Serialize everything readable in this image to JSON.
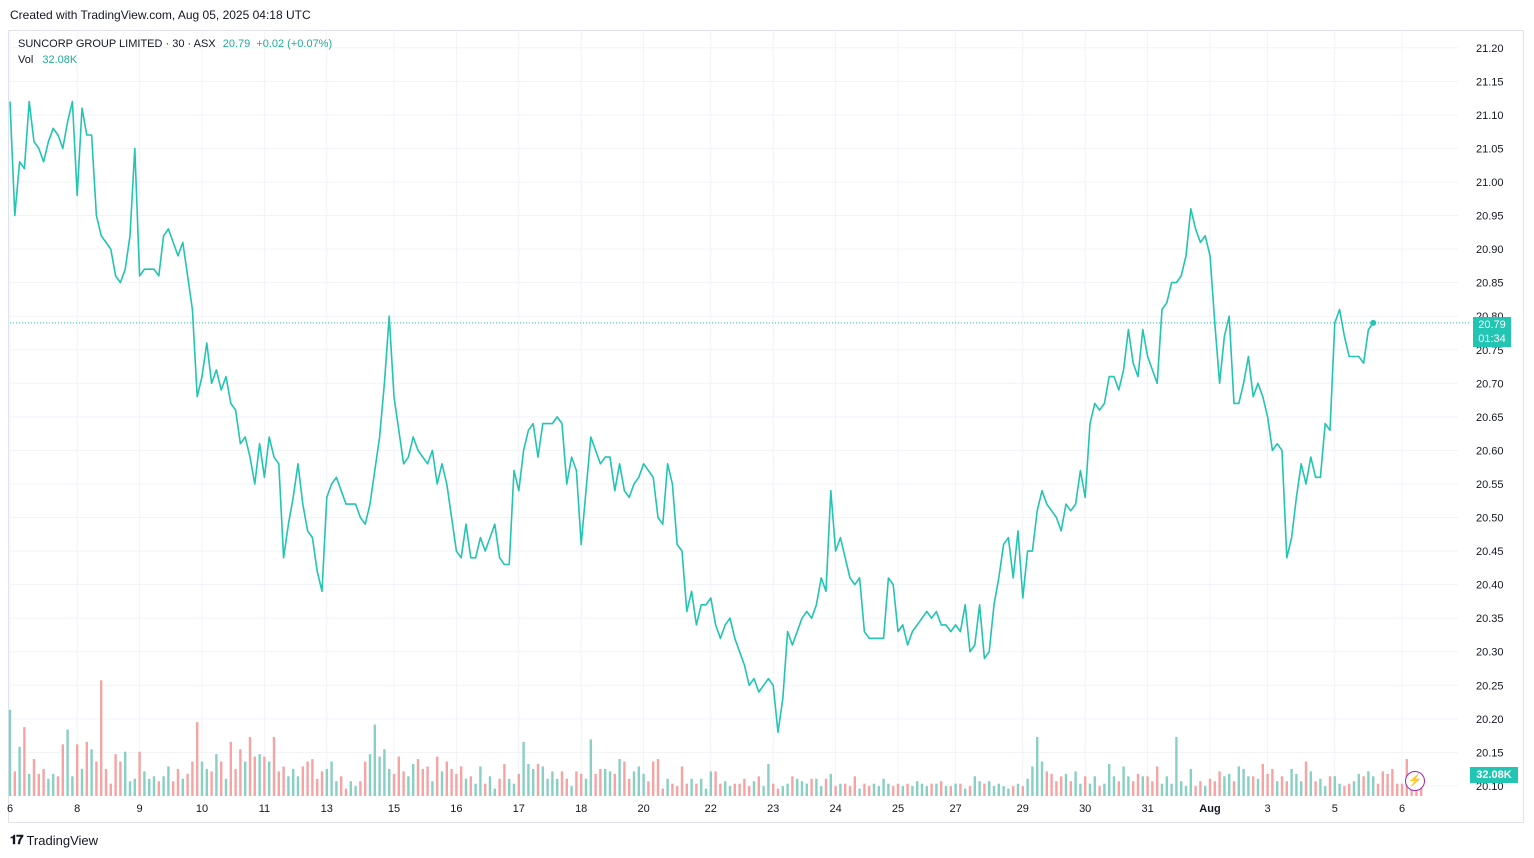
{
  "header": {
    "created_text": "Created with TradingView.com, Aug 05, 2025 04:18 UTC"
  },
  "legend": {
    "symbol": "SUNCORP GROUP LIMITED · 30 · ASX",
    "price": "20.79",
    "change": "+0.02 (+0.07%)",
    "vol_label": "Vol",
    "vol_value": "32.08K"
  },
  "badges": {
    "price": "20.79",
    "countdown": "01:34",
    "volume": "32.08K"
  },
  "footer": {
    "brand": "TradingView"
  },
  "colors": {
    "line": "#22c4b2",
    "vol_up": "#88cfc4",
    "vol_down": "#f5a3a3",
    "grid": "#f0f3fa"
  },
  "chart_data": {
    "type": "line",
    "ylim": [
      20.085,
      21.225
    ],
    "yticks": [
      "21.20",
      "21.15",
      "21.10",
      "21.05",
      "21.00",
      "20.95",
      "20.90",
      "20.85",
      "20.80",
      "20.75",
      "20.70",
      "20.65",
      "20.60",
      "20.55",
      "20.50",
      "20.45",
      "20.40",
      "20.35",
      "20.30",
      "20.25",
      "20.20",
      "20.15",
      "20.10"
    ],
    "xticks": [
      {
        "label": "6",
        "i": 0
      },
      {
        "label": "8",
        "i": 14
      },
      {
        "label": "9",
        "i": 27
      },
      {
        "label": "10",
        "i": 40
      },
      {
        "label": "11",
        "i": 53
      },
      {
        "label": "13",
        "i": 66
      },
      {
        "label": "15",
        "i": 80
      },
      {
        "label": "16",
        "i": 93
      },
      {
        "label": "17",
        "i": 106
      },
      {
        "label": "18",
        "i": 119
      },
      {
        "label": "20",
        "i": 132
      },
      {
        "label": "22",
        "i": 146
      },
      {
        "label": "23",
        "i": 159
      },
      {
        "label": "24",
        "i": 172
      },
      {
        "label": "25",
        "i": 185
      },
      {
        "label": "27",
        "i": 197
      },
      {
        "label": "29",
        "i": 211
      },
      {
        "label": "30",
        "i": 224
      },
      {
        "label": "31",
        "i": 237
      },
      {
        "label": "Aug",
        "i": 250
      },
      {
        "label": "3",
        "i": 262
      },
      {
        "label": "5",
        "i": 276
      },
      {
        "label": "6",
        "i": 290
      }
    ],
    "last_price": 20.79,
    "series": [
      {
        "values": [
          21.12,
          20.95,
          21.03,
          21.02,
          21.12,
          21.06,
          21.05,
          21.03,
          21.06,
          21.08,
          21.07,
          21.05,
          21.09,
          21.12,
          20.98,
          21.11,
          21.07,
          21.07,
          20.95,
          20.92,
          20.91,
          20.9,
          20.86,
          20.85,
          20.87,
          20.92,
          21.05,
          20.86,
          20.87,
          20.87,
          20.87,
          20.86,
          20.92,
          20.93,
          20.91,
          20.89,
          20.91,
          20.86,
          20.81,
          20.68,
          20.71,
          20.76,
          20.7,
          20.72,
          20.69,
          20.71,
          20.67,
          20.66,
          20.61,
          20.62,
          20.59,
          20.55,
          20.61,
          20.56,
          20.62,
          20.59,
          20.58,
          20.44,
          20.49,
          20.53,
          20.58,
          20.52,
          20.48,
          20.47,
          20.42,
          20.39,
          20.53,
          20.55,
          20.56,
          20.54,
          20.52,
          20.52,
          20.52,
          20.5,
          20.49,
          20.52,
          20.57,
          20.62,
          20.7,
          20.8,
          20.68,
          20.63,
          20.58,
          20.59,
          20.62,
          20.6,
          20.59,
          20.58,
          20.6,
          20.55,
          20.58,
          20.55,
          20.5,
          20.45,
          20.44,
          20.49,
          20.44,
          20.44,
          20.47,
          20.45,
          20.47,
          20.49,
          20.44,
          20.43,
          20.43,
          20.57,
          20.54,
          20.6,
          20.63,
          20.64,
          20.59,
          20.64,
          20.64,
          20.64,
          20.65,
          20.64,
          20.55,
          20.59,
          20.57,
          20.46,
          20.54,
          20.62,
          20.6,
          20.58,
          20.59,
          20.59,
          20.54,
          20.58,
          20.54,
          20.53,
          20.55,
          20.56,
          20.58,
          20.57,
          20.56,
          20.5,
          20.49,
          20.58,
          20.55,
          20.46,
          20.45,
          20.36,
          20.39,
          20.34,
          20.37,
          20.37,
          20.38,
          20.34,
          20.32,
          20.34,
          20.35,
          20.32,
          20.3,
          20.28,
          20.25,
          20.26,
          20.24,
          20.25,
          20.26,
          20.25,
          20.18,
          20.23,
          20.33,
          20.31,
          20.33,
          20.35,
          20.36,
          20.35,
          20.37,
          20.41,
          20.39,
          20.54,
          20.45,
          20.47,
          20.44,
          20.41,
          20.4,
          20.41,
          20.33,
          20.32,
          20.32,
          20.32,
          20.32,
          20.41,
          20.4,
          20.33,
          20.34,
          20.31,
          20.33,
          20.34,
          20.35,
          20.36,
          20.35,
          20.36,
          20.34,
          20.34,
          20.33,
          20.34,
          20.33,
          20.37,
          20.3,
          20.31,
          20.37,
          20.29,
          20.3,
          20.37,
          20.41,
          20.46,
          20.47,
          20.41,
          20.48,
          20.38,
          20.45,
          20.45,
          20.51,
          20.54,
          20.52,
          20.51,
          20.5,
          20.48,
          20.52,
          20.51,
          20.52,
          20.57,
          20.53,
          20.64,
          20.67,
          20.66,
          20.67,
          20.71,
          20.71,
          20.69,
          20.72,
          20.78,
          20.73,
          20.71,
          20.78,
          20.74,
          20.72,
          20.7,
          20.81,
          20.82,
          20.85,
          20.85,
          20.86,
          20.89,
          20.96,
          20.93,
          20.91,
          20.92,
          20.89,
          20.79,
          20.7,
          20.77,
          20.8,
          20.67,
          20.67,
          20.7,
          20.74,
          20.68,
          20.7,
          20.68,
          20.65,
          20.6,
          20.61,
          20.6,
          20.44,
          20.47,
          20.53,
          20.58,
          20.55,
          20.59,
          20.56,
          20.56,
          20.64,
          20.63,
          20.79,
          20.81,
          20.77,
          20.74,
          20.74,
          20.74,
          20.73,
          20.78,
          20.79
        ]
      },
      {
        "name": "Vol",
        "values": [
          35,
          10,
          20,
          28,
          9,
          15,
          9,
          11,
          7,
          9,
          8,
          21,
          27,
          8,
          21,
          11,
          22,
          19,
          14,
          47,
          11,
          5,
          17,
          14,
          18,
          6,
          7,
          18,
          10,
          7,
          8,
          6,
          8,
          12,
          6,
          11,
          7,
          9,
          14,
          30,
          14,
          11,
          10,
          17,
          14,
          7,
          22,
          11,
          19,
          14,
          24,
          16,
          17,
          16,
          14,
          24,
          10,
          12,
          8,
          11,
          8,
          12,
          14,
          15,
          7,
          10,
          11,
          14,
          6,
          8,
          3,
          6,
          4,
          6,
          14,
          17,
          29,
          16,
          19,
          11,
          9,
          16,
          10,
          8,
          13,
          15,
          11,
          12,
          6,
          16,
          10,
          14,
          11,
          9,
          12,
          7,
          8,
          5,
          12,
          5,
          8,
          3,
          7,
          13,
          7,
          5,
          9,
          22,
          13,
          11,
          13,
          12,
          7,
          10,
          7,
          10,
          7,
          4,
          10,
          9,
          7,
          23,
          9,
          11,
          11,
          10,
          9,
          15,
          14,
          7,
          10,
          12,
          9,
          6,
          14,
          15,
          3,
          7,
          5,
          4,
          12,
          5,
          7,
          5,
          7,
          3,
          10,
          10,
          5,
          6,
          4,
          5,
          5,
          7,
          4,
          6,
          8,
          4,
          13,
          5,
          3,
          4,
          5,
          8,
          7,
          6,
          5,
          7,
          7,
          4,
          7,
          9,
          4,
          5,
          5,
          4,
          8,
          3,
          5,
          4,
          5,
          4,
          7,
          5,
          4,
          5,
          4,
          5,
          4,
          6,
          5,
          4,
          5,
          5,
          6,
          4,
          4,
          5,
          5,
          3,
          4,
          8,
          6,
          5,
          6,
          4,
          5,
          4,
          3,
          4,
          5,
          4,
          7,
          12,
          24,
          14,
          10,
          9,
          6,
          8,
          9,
          6,
          10,
          5,
          8,
          5,
          8,
          4,
          5,
          13,
          8,
          6,
          12,
          8,
          6,
          9,
          8,
          8,
          6,
          12,
          5,
          8,
          5,
          24,
          6,
          4,
          11,
          4,
          6,
          4,
          7,
          6,
          10,
          8,
          9,
          6,
          12,
          11,
          8,
          8,
          7,
          13,
          9,
          11,
          6,
          8,
          6,
          11,
          9,
          6,
          14,
          10,
          6,
          7,
          4,
          8,
          8,
          5,
          4,
          5,
          6,
          9,
          8,
          10,
          8,
          5,
          10,
          9,
          11,
          5,
          5,
          15,
          4,
          9,
          4
        ]
      }
    ]
  }
}
